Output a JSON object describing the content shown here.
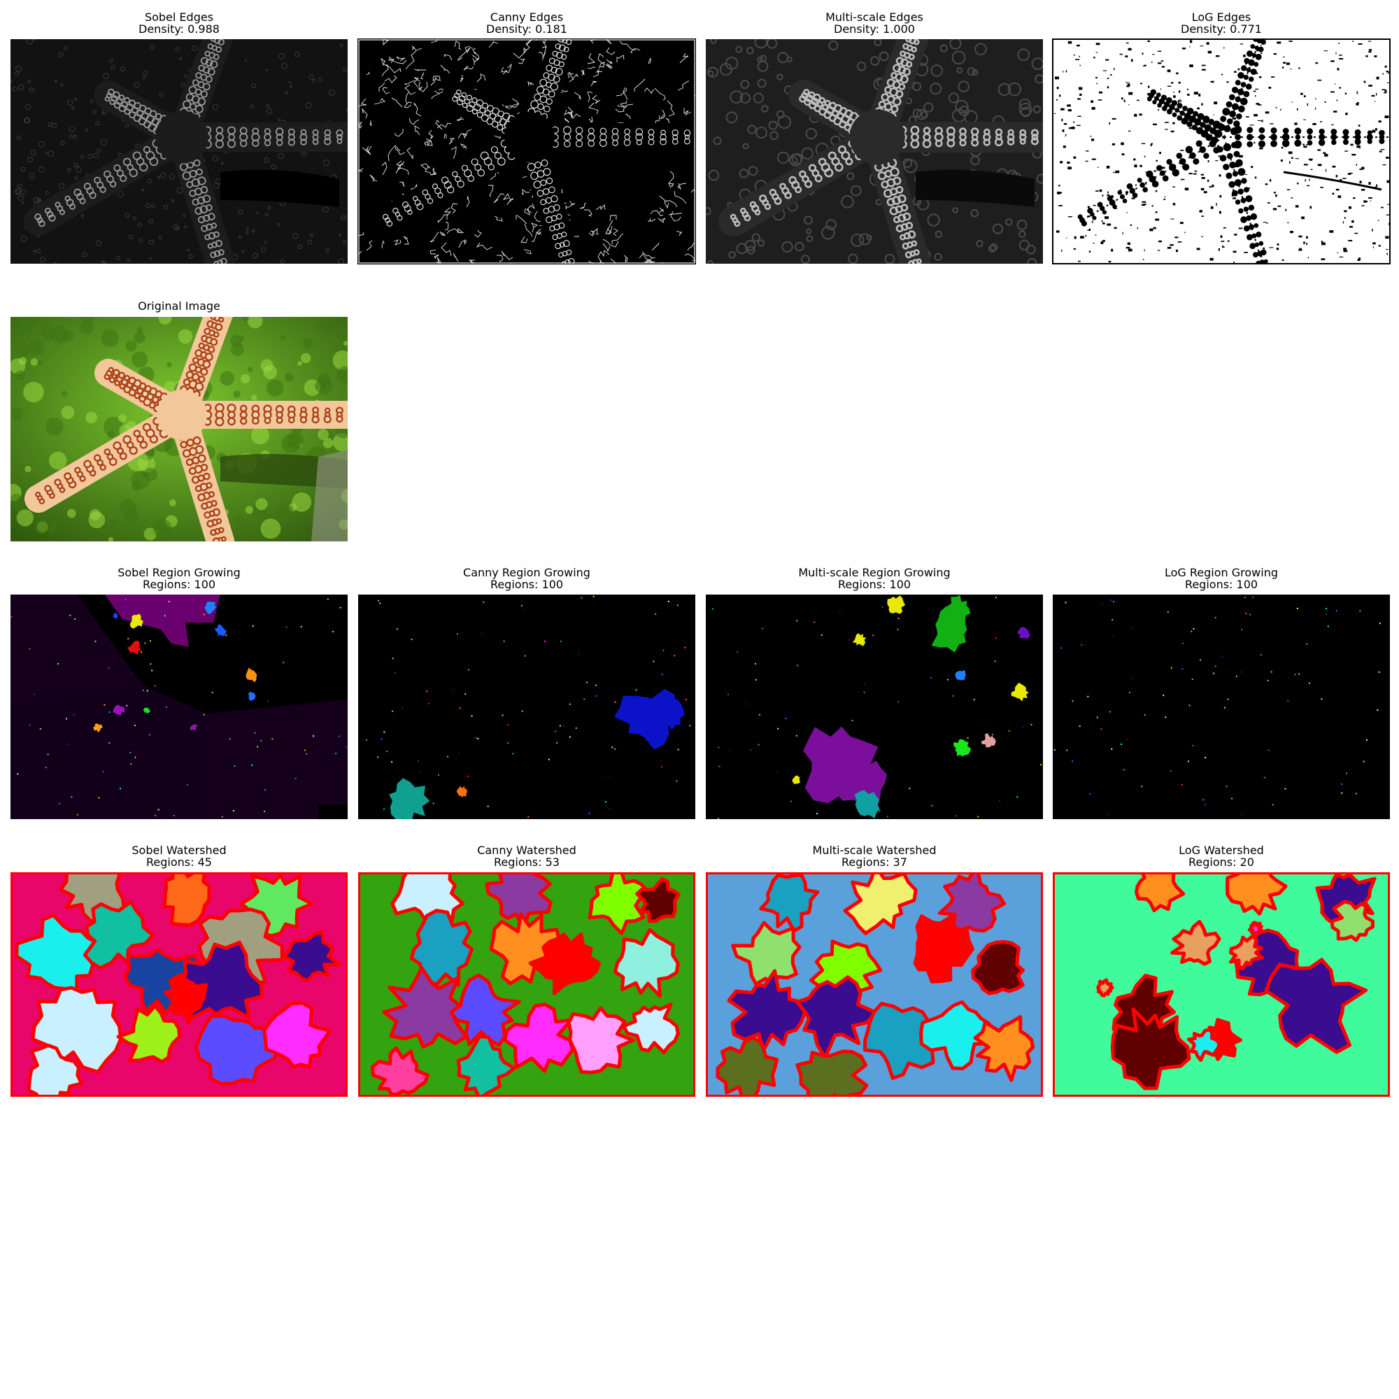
{
  "row_edges": [
    {
      "key": "sobel_edges",
      "title": "Sobel Edges",
      "stat": "Density: 0.988",
      "style": "sobel"
    },
    {
      "key": "canny_edges",
      "title": "Canny Edges",
      "stat": "Density: 0.181",
      "style": "canny"
    },
    {
      "key": "multiscale_edges",
      "title": "Multi-scale Edges",
      "stat": "Density: 1.000",
      "style": "multiscale"
    },
    {
      "key": "log_edges",
      "title": "LoG Edges",
      "stat": "Density: 0.771",
      "style": "log"
    }
  ],
  "original": {
    "title": "Original Image"
  },
  "row_region": [
    {
      "key": "sobel_region",
      "title": "Sobel Region Growing",
      "stat": "Regions: 100"
    },
    {
      "key": "canny_region",
      "title": "Canny Region Growing",
      "stat": "Regions: 100"
    },
    {
      "key": "multiscale_region",
      "title": "Multi-scale Region Growing",
      "stat": "Regions: 100"
    },
    {
      "key": "log_region",
      "title": "LoG Region Growing",
      "stat": "Regions: 100"
    }
  ],
  "row_watershed": [
    {
      "key": "sobel_watershed",
      "title": "Sobel Watershed",
      "stat": "Regions: 45",
      "background": "#e8066a"
    },
    {
      "key": "canny_watershed",
      "title": "Canny Watershed",
      "stat": "Regions: 53",
      "background": "#33a40f"
    },
    {
      "key": "multiscale_watershed",
      "title": "Multi-scale Watershed",
      "stat": "Regions: 37",
      "background": "#5aa1db"
    },
    {
      "key": "log_watershed",
      "title": "LoG Watershed",
      "stat": "Regions: 20",
      "background": "#40fb9b"
    }
  ],
  "palette": [
    "#19f0ee",
    "#1843a0",
    "#e8a060",
    "#a0a080",
    "#5b4dff",
    "#ff2dff",
    "#9df01a",
    "#c8f0ff",
    "#ff6a1a",
    "#3a0c90",
    "#ff9020",
    "#1aa0c0",
    "#8a3aa0",
    "#60e860",
    "#e04040",
    "#90f0e0",
    "#f0f070",
    "#600000",
    "#7fff00",
    "#ff40a0",
    "#2070ff",
    "#ffa0ff",
    "#ff0000",
    "#10c0a0"
  ]
}
